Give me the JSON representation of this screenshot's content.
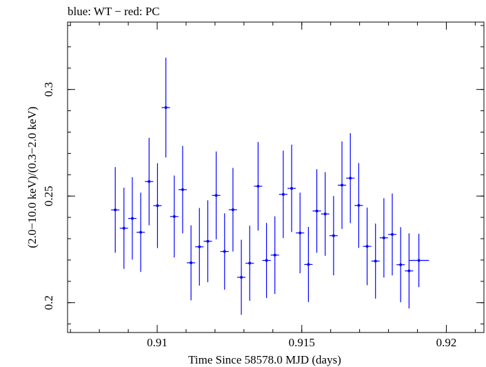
{
  "chart_data": {
    "type": "scatter",
    "title": "blue: WT − red: PC",
    "xlabel": "Time Since 58578.0 MJD (days)",
    "ylabel": "(2.0−10.0 keV)/(0.3−2.0 keV)",
    "xlim": [
      0.9069,
      0.9213
    ],
    "ylim": [
      0.186,
      0.3316
    ],
    "x_ticks": [
      {
        "value": 0.91,
        "label": "0.91"
      },
      {
        "value": 0.915,
        "label": "0.915"
      },
      {
        "value": 0.92,
        "label": "0.92"
      }
    ],
    "y_ticks": [
      {
        "value": 0.2,
        "label": "0.2"
      },
      {
        "value": 0.25,
        "label": "0.25"
      },
      {
        "value": 0.3,
        "label": "0.3"
      }
    ],
    "grid": false,
    "series": [
      {
        "name": "WT",
        "color": "#0000ff",
        "xerr": 0.000145,
        "points": [
          {
            "x": 0.90855,
            "y": 0.2435,
            "yerr_lo": 0.0201,
            "yerr_hi": 0.0201
          },
          {
            "x": 0.90885,
            "y": 0.2349,
            "yerr_lo": 0.019,
            "yerr_hi": 0.019
          },
          {
            "x": 0.90914,
            "y": 0.2395,
            "yerr_lo": 0.0193,
            "yerr_hi": 0.0193
          },
          {
            "x": 0.90943,
            "y": 0.233,
            "yerr_lo": 0.0186,
            "yerr_hi": 0.0186
          },
          {
            "x": 0.90972,
            "y": 0.2568,
            "yerr_lo": 0.0205,
            "yerr_hi": 0.0205
          },
          {
            "x": 0.91001,
            "y": 0.2455,
            "yerr_lo": 0.0199,
            "yerr_hi": 0.0199
          },
          {
            "x": 0.9103,
            "y": 0.2915,
            "yerr_lo": 0.0234,
            "yerr_hi": 0.0234
          },
          {
            "x": 0.91059,
            "y": 0.2404,
            "yerr_lo": 0.0192,
            "yerr_hi": 0.0192
          },
          {
            "x": 0.91088,
            "y": 0.253,
            "yerr_lo": 0.0205,
            "yerr_hi": 0.0205
          },
          {
            "x": 0.91117,
            "y": 0.2187,
            "yerr_lo": 0.0176,
            "yerr_hi": 0.0176
          },
          {
            "x": 0.91146,
            "y": 0.2262,
            "yerr_lo": 0.0182,
            "yerr_hi": 0.0182
          },
          {
            "x": 0.91175,
            "y": 0.2288,
            "yerr_lo": 0.0192,
            "yerr_hi": 0.0192
          },
          {
            "x": 0.91204,
            "y": 0.2503,
            "yerr_lo": 0.0206,
            "yerr_hi": 0.0206
          },
          {
            "x": 0.91233,
            "y": 0.224,
            "yerr_lo": 0.0179,
            "yerr_hi": 0.0179
          },
          {
            "x": 0.91262,
            "y": 0.2436,
            "yerr_lo": 0.0196,
            "yerr_hi": 0.0196
          },
          {
            "x": 0.91291,
            "y": 0.2119,
            "yerr_lo": 0.0176,
            "yerr_hi": 0.0176
          },
          {
            "x": 0.9132,
            "y": 0.2185,
            "yerr_lo": 0.0176,
            "yerr_hi": 0.0176
          },
          {
            "x": 0.91349,
            "y": 0.2546,
            "yerr_lo": 0.0208,
            "yerr_hi": 0.0208
          },
          {
            "x": 0.91378,
            "y": 0.2198,
            "yerr_lo": 0.0176,
            "yerr_hi": 0.0176
          },
          {
            "x": 0.91407,
            "y": 0.2223,
            "yerr_lo": 0.0182,
            "yerr_hi": 0.0182
          },
          {
            "x": 0.91436,
            "y": 0.2508,
            "yerr_lo": 0.0205,
            "yerr_hi": 0.0205
          },
          {
            "x": 0.91465,
            "y": 0.2536,
            "yerr_lo": 0.0205,
            "yerr_hi": 0.0205
          },
          {
            "x": 0.91494,
            "y": 0.2327,
            "yerr_lo": 0.0189,
            "yerr_hi": 0.0189
          },
          {
            "x": 0.91523,
            "y": 0.2179,
            "yerr_lo": 0.0176,
            "yerr_hi": 0.0176
          },
          {
            "x": 0.91552,
            "y": 0.243,
            "yerr_lo": 0.0196,
            "yerr_hi": 0.0196
          },
          {
            "x": 0.91581,
            "y": 0.2416,
            "yerr_lo": 0.0196,
            "yerr_hi": 0.0196
          },
          {
            "x": 0.9161,
            "y": 0.2314,
            "yerr_lo": 0.0186,
            "yerr_hi": 0.0186
          },
          {
            "x": 0.91639,
            "y": 0.2551,
            "yerr_lo": 0.0205,
            "yerr_hi": 0.0205
          },
          {
            "x": 0.91668,
            "y": 0.2584,
            "yerr_lo": 0.0211,
            "yerr_hi": 0.0211
          },
          {
            "x": 0.91697,
            "y": 0.2456,
            "yerr_lo": 0.0199,
            "yerr_hi": 0.0199
          },
          {
            "x": 0.91726,
            "y": 0.2264,
            "yerr_lo": 0.0182,
            "yerr_hi": 0.0182
          },
          {
            "x": 0.91755,
            "y": 0.2195,
            "yerr_lo": 0.0176,
            "yerr_hi": 0.0176
          },
          {
            "x": 0.91784,
            "y": 0.2304,
            "yerr_lo": 0.0186,
            "yerr_hi": 0.0186
          },
          {
            "x": 0.91813,
            "y": 0.232,
            "yerr_lo": 0.0192,
            "yerr_hi": 0.0192
          },
          {
            "x": 0.91842,
            "y": 0.2178,
            "yerr_lo": 0.0176,
            "yerr_hi": 0.0176
          },
          {
            "x": 0.91871,
            "y": 0.2149,
            "yerr_lo": 0.0176,
            "yerr_hi": 0.0176
          },
          {
            "x": 0.91905,
            "y": 0.2198,
            "yerr_lo": 0.0125,
            "yerr_hi": 0.0125,
            "xerr": 0.00035
          }
        ]
      }
    ]
  }
}
